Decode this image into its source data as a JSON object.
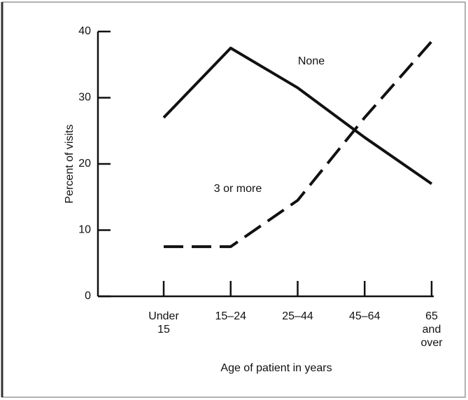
{
  "chart_data": {
    "type": "line",
    "x_label": "Age of patient in years",
    "y_label": "Percent of visits",
    "categories": [
      "Under 15",
      "15–24",
      "25–44",
      "45–64",
      "65 and over"
    ],
    "series": [
      {
        "name": "None",
        "color": "#111111",
        "style": "solid",
        "values": [
          27,
          37.5,
          31.5,
          24,
          17
        ]
      },
      {
        "name": "3 or more",
        "color": "#111111",
        "style": "dashed",
        "values": [
          7.5,
          7.5,
          14.5,
          27,
          38.5
        ]
      }
    ],
    "ylim": [
      0,
      40
    ],
    "yticks": [
      0,
      10,
      20,
      30,
      40
    ],
    "grid": false
  }
}
